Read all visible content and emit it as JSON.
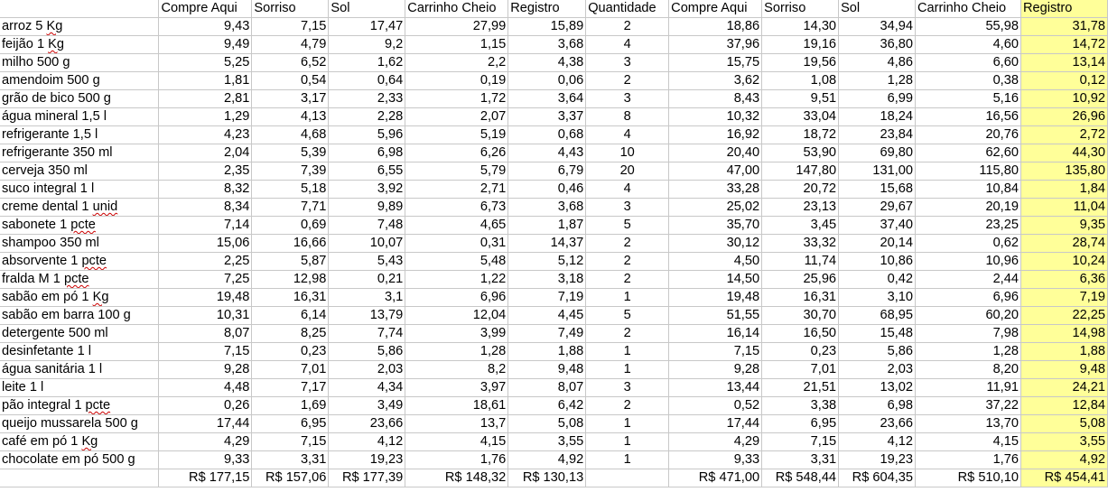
{
  "header": [
    "",
    "Compre Aqui",
    "Sorriso",
    "Sol",
    "Carrinho Cheio",
    "Registro",
    "Quantidade",
    "Compre Aqui",
    "Sorriso",
    "Sol",
    "Carrinho Cheio",
    "Registro"
  ],
  "rows": [
    {
      "item": "arroz 5 Kg",
      "unit": [
        "9,43",
        "7,15",
        "17,47",
        "27,99",
        "15,89"
      ],
      "qty": "2",
      "total": [
        "18,86",
        "14,30",
        "34,94",
        "55,98",
        "31,78"
      ]
    },
    {
      "item": "feijão 1 Kg",
      "unit": [
        "9,49",
        "4,79",
        "9,2",
        "1,15",
        "3,68"
      ],
      "qty": "4",
      "total": [
        "37,96",
        "19,16",
        "36,80",
        "4,60",
        "14,72"
      ]
    },
    {
      "item": "milho 500 g",
      "unit": [
        "5,25",
        "6,52",
        "1,62",
        "2,2",
        "4,38"
      ],
      "qty": "3",
      "total": [
        "15,75",
        "19,56",
        "4,86",
        "6,60",
        "13,14"
      ]
    },
    {
      "item": "amendoim 500 g",
      "unit": [
        "1,81",
        "0,54",
        "0,64",
        "0,19",
        "0,06"
      ],
      "qty": "2",
      "total": [
        "3,62",
        "1,08",
        "1,28",
        "0,38",
        "0,12"
      ]
    },
    {
      "item": "grão de bico 500 g",
      "unit": [
        "2,81",
        "3,17",
        "2,33",
        "1,72",
        "3,64"
      ],
      "qty": "3",
      "total": [
        "8,43",
        "9,51",
        "6,99",
        "5,16",
        "10,92"
      ]
    },
    {
      "item": "água mineral 1,5 l",
      "unit": [
        "1,29",
        "4,13",
        "2,28",
        "2,07",
        "3,37"
      ],
      "qty": "8",
      "total": [
        "10,32",
        "33,04",
        "18,24",
        "16,56",
        "26,96"
      ]
    },
    {
      "item": "refrigerante 1,5 l",
      "unit": [
        "4,23",
        "4,68",
        "5,96",
        "5,19",
        "0,68"
      ],
      "qty": "4",
      "total": [
        "16,92",
        "18,72",
        "23,84",
        "20,76",
        "2,72"
      ]
    },
    {
      "item": "refrigerante 350 ml",
      "unit": [
        "2,04",
        "5,39",
        "6,98",
        "6,26",
        "4,43"
      ],
      "qty": "10",
      "total": [
        "20,40",
        "53,90",
        "69,80",
        "62,60",
        "44,30"
      ]
    },
    {
      "item": "cerveja 350 ml",
      "unit": [
        "2,35",
        "7,39",
        "6,55",
        "5,79",
        "6,79"
      ],
      "qty": "20",
      "total": [
        "47,00",
        "147,80",
        "131,00",
        "115,80",
        "135,80"
      ]
    },
    {
      "item": "suco integral 1 l",
      "unit": [
        "8,32",
        "5,18",
        "3,92",
        "2,71",
        "0,46"
      ],
      "qty": "4",
      "total": [
        "33,28",
        "20,72",
        "15,68",
        "10,84",
        "1,84"
      ]
    },
    {
      "item": "creme dental 1 unid",
      "unit": [
        "8,34",
        "7,71",
        "9,89",
        "6,73",
        "3,68"
      ],
      "qty": "3",
      "total": [
        "25,02",
        "23,13",
        "29,67",
        "20,19",
        "11,04"
      ]
    },
    {
      "item": "sabonete 1 pcte",
      "unit": [
        "7,14",
        "0,69",
        "7,48",
        "4,65",
        "1,87"
      ],
      "qty": "5",
      "total": [
        "35,70",
        "3,45",
        "37,40",
        "23,25",
        "9,35"
      ]
    },
    {
      "item": "shampoo 350 ml",
      "unit": [
        "15,06",
        "16,66",
        "10,07",
        "0,31",
        "14,37"
      ],
      "qty": "2",
      "total": [
        "30,12",
        "33,32",
        "20,14",
        "0,62",
        "28,74"
      ]
    },
    {
      "item": "absorvente 1 pcte",
      "unit": [
        "2,25",
        "5,87",
        "5,43",
        "5,48",
        "5,12"
      ],
      "qty": "2",
      "total": [
        "4,50",
        "11,74",
        "10,86",
        "10,96",
        "10,24"
      ]
    },
    {
      "item": "fralda M 1 pcte",
      "unit": [
        "7,25",
        "12,98",
        "0,21",
        "1,22",
        "3,18"
      ],
      "qty": "2",
      "total": [
        "14,50",
        "25,96",
        "0,42",
        "2,44",
        "6,36"
      ]
    },
    {
      "item": "sabão em pó 1 Kg",
      "unit": [
        "19,48",
        "16,31",
        "3,1",
        "6,96",
        "7,19"
      ],
      "qty": "1",
      "total": [
        "19,48",
        "16,31",
        "3,10",
        "6,96",
        "7,19"
      ]
    },
    {
      "item": "sabão em barra 100 g",
      "unit": [
        "10,31",
        "6,14",
        "13,79",
        "12,04",
        "4,45"
      ],
      "qty": "5",
      "total": [
        "51,55",
        "30,70",
        "68,95",
        "60,20",
        "22,25"
      ]
    },
    {
      "item": "detergente 500 ml",
      "unit": [
        "8,07",
        "8,25",
        "7,74",
        "3,99",
        "7,49"
      ],
      "qty": "2",
      "total": [
        "16,14",
        "16,50",
        "15,48",
        "7,98",
        "14,98"
      ]
    },
    {
      "item": "desinfetante 1 l",
      "unit": [
        "7,15",
        "0,23",
        "5,86",
        "1,28",
        "1,88"
      ],
      "qty": "1",
      "total": [
        "7,15",
        "0,23",
        "5,86",
        "1,28",
        "1,88"
      ]
    },
    {
      "item": "água sanitária 1 l",
      "unit": [
        "9,28",
        "7,01",
        "2,03",
        "8,2",
        "9,48"
      ],
      "qty": "1",
      "total": [
        "9,28",
        "7,01",
        "2,03",
        "8,20",
        "9,48"
      ]
    },
    {
      "item": "leite 1 l",
      "unit": [
        "4,48",
        "7,17",
        "4,34",
        "3,97",
        "8,07"
      ],
      "qty": "3",
      "total": [
        "13,44",
        "21,51",
        "13,02",
        "11,91",
        "24,21"
      ]
    },
    {
      "item": "pão integral 1 pcte",
      "unit": [
        "0,26",
        "1,69",
        "3,49",
        "18,61",
        "6,42"
      ],
      "qty": "2",
      "total": [
        "0,52",
        "3,38",
        "6,98",
        "37,22",
        "12,84"
      ]
    },
    {
      "item": "queijo mussarela 500 g",
      "unit": [
        "17,44",
        "6,95",
        "23,66",
        "13,7",
        "5,08"
      ],
      "qty": "1",
      "total": [
        "17,44",
        "6,95",
        "23,66",
        "13,70",
        "5,08"
      ]
    },
    {
      "item": "café em pó 1 Kg",
      "unit": [
        "4,29",
        "7,15",
        "4,12",
        "4,15",
        "3,55"
      ],
      "qty": "1",
      "total": [
        "4,29",
        "7,15",
        "4,12",
        "4,15",
        "3,55"
      ]
    },
    {
      "item": "chocolate em pó 500 g",
      "unit": [
        "9,33",
        "3,31",
        "19,23",
        "1,76",
        "4,92"
      ],
      "qty": "1",
      "total": [
        "9,33",
        "3,31",
        "19,23",
        "1,76",
        "4,92"
      ]
    }
  ],
  "totals": {
    "unit": [
      "R$ 177,15",
      "R$ 157,06",
      "R$ 177,39",
      "R$ 148,32",
      "R$ 130,13"
    ],
    "total": [
      "R$ 471,00",
      "R$ 548,44",
      "R$ 604,35",
      "R$ 510,10",
      "R$ 454,41"
    ]
  },
  "colors": {
    "highlight": "#ffff99",
    "grid": "#c8c8c8",
    "spellcheck": "#cc0000"
  }
}
